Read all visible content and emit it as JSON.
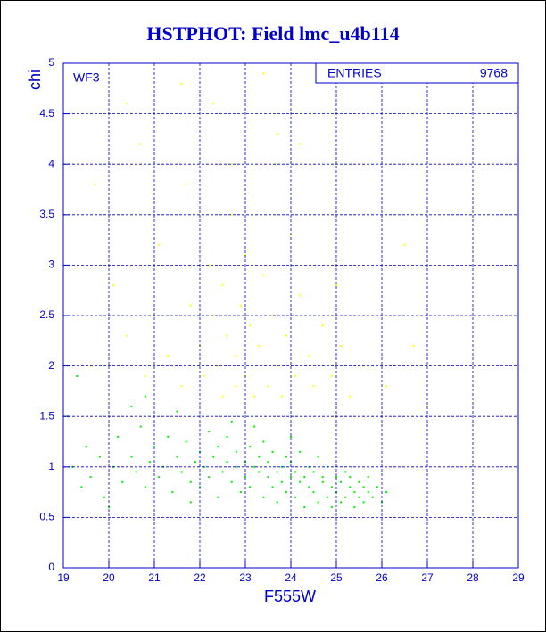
{
  "chart_data": {
    "type": "scatter",
    "title": "HSTPHOT: Field lmc_u4b114",
    "xlabel": "F555W",
    "ylabel": "chi",
    "annotation": "WF3",
    "stats_label": "ENTRIES",
    "stats_value": "9768",
    "xlim": [
      19,
      29
    ],
    "ylim": [
      0,
      5
    ],
    "xticks": [
      19,
      20,
      21,
      22,
      23,
      24,
      25,
      26,
      27,
      28,
      29
    ],
    "yticks": [
      0,
      0.5,
      1,
      1.5,
      2,
      2.5,
      3,
      3.5,
      4,
      4.5,
      5
    ],
    "grid": true,
    "axis_color": "#0000cc",
    "series": [
      {
        "color": "#00ee00",
        "x": [
          19.2,
          19.4,
          19.5,
          19.6,
          19.8,
          19.9,
          20.1,
          20.2,
          20.3,
          20.5,
          20.6,
          20.7,
          20.8,
          20.9,
          21.0,
          21.1,
          21.2,
          21.3,
          21.4,
          21.5,
          21.6,
          21.7,
          21.8,
          21.9,
          22.0,
          22.0,
          22.1,
          22.2,
          22.2,
          22.3,
          22.4,
          22.4,
          22.5,
          22.6,
          22.6,
          22.7,
          22.8,
          22.8,
          22.9,
          23.0,
          23.0,
          23.1,
          23.1,
          23.2,
          23.3,
          23.3,
          23.4,
          23.4,
          23.5,
          23.5,
          23.6,
          23.6,
          23.7,
          23.7,
          23.8,
          23.8,
          23.9,
          23.9,
          24.0,
          24.0,
          24.1,
          24.1,
          24.2,
          24.2,
          24.3,
          24.3,
          24.4,
          24.4,
          24.5,
          24.5,
          24.6,
          24.6,
          24.7,
          24.7,
          24.8,
          24.8,
          24.9,
          24.9,
          25.0,
          25.0,
          25.1,
          25.1,
          25.2,
          25.2,
          25.3,
          25.3,
          25.4,
          25.4,
          25.5,
          25.5,
          25.6,
          25.6,
          25.7,
          25.7,
          25.8,
          25.9,
          26.0,
          26.1,
          20.5,
          21.5,
          22.7,
          23.2,
          19.1,
          24.0,
          20.0,
          21.8,
          19.3,
          20.8
        ],
        "values": [
          1.0,
          0.8,
          1.2,
          0.9,
          1.1,
          0.7,
          1.0,
          1.3,
          0.85,
          1.1,
          0.95,
          1.4,
          0.8,
          1.05,
          1.2,
          0.9,
          1.0,
          1.3,
          0.75,
          1.1,
          0.95,
          1.25,
          0.85,
          1.05,
          1.15,
          0.8,
          1.0,
          1.35,
          0.9,
          1.1,
          0.7,
          1.2,
          0.95,
          1.05,
          1.3,
          0.85,
          1.0,
          1.15,
          0.75,
          1.05,
          0.9,
          1.2,
          0.8,
          1.0,
          0.95,
          1.1,
          0.7,
          1.25,
          0.9,
          1.05,
          0.8,
          1.15,
          0.95,
          0.65,
          1.0,
          0.85,
          1.1,
          0.75,
          0.9,
          1.05,
          0.7,
          0.95,
          0.85,
          1.15,
          0.6,
          0.9,
          1.0,
          0.8,
          0.75,
          0.95,
          1.1,
          0.65,
          0.85,
          0.9,
          0.7,
          1.0,
          0.8,
          0.6,
          0.9,
          0.75,
          0.85,
          0.65,
          0.95,
          0.7,
          0.8,
          0.9,
          0.6,
          0.75,
          0.85,
          0.7,
          0.8,
          0.65,
          0.9,
          0.75,
          0.7,
          0.8,
          0.65,
          0.75,
          1.6,
          1.55,
          1.45,
          1.4,
          1.5,
          1.3,
          0.6,
          0.65,
          1.9,
          1.7
        ]
      },
      {
        "color": "#ffff00",
        "x": [
          20.1,
          20.4,
          20.8,
          21.1,
          21.3,
          21.6,
          21.8,
          22.0,
          22.1,
          22.2,
          22.3,
          22.4,
          22.5,
          22.5,
          22.6,
          22.7,
          22.8,
          22.8,
          22.9,
          23.0,
          23.0,
          23.1,
          23.2,
          23.3,
          23.4,
          23.5,
          23.6,
          23.7,
          23.8,
          23.9,
          24.0,
          24.1,
          24.2,
          24.4,
          24.5,
          24.7,
          24.9,
          25.1,
          25.3,
          25.6,
          26.1,
          26.7,
          27.0,
          21.6,
          22.3,
          23.4,
          20.4,
          22.7,
          21.7,
          24.2,
          23.7,
          20.7,
          19.7,
          26.5,
          25.0,
          21.0,
          19.6
        ],
        "values": [
          2.8,
          2.3,
          1.9,
          3.2,
          2.1,
          1.8,
          2.6,
          2.2,
          1.9,
          3.0,
          2.5,
          2.0,
          1.7,
          2.8,
          2.3,
          3.5,
          2.1,
          1.8,
          2.6,
          1.9,
          3.1,
          2.4,
          1.7,
          2.2,
          2.9,
          1.8,
          2.5,
          2.0,
          1.7,
          2.3,
          3.3,
          1.9,
          2.7,
          2.1,
          1.8,
          2.4,
          1.9,
          2.2,
          1.7,
          2.0,
          1.8,
          2.2,
          1.6,
          4.8,
          4.6,
          4.9,
          4.6,
          4.0,
          3.8,
          4.2,
          4.3,
          4.2,
          3.8,
          3.2,
          2.8,
          2.5,
          2.0
        ]
      }
    ]
  }
}
